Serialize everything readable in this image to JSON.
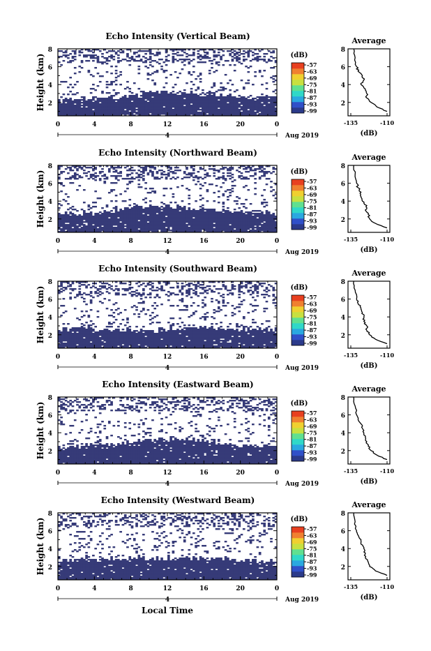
{
  "figure": {
    "xlabel_bottom": "Local Time",
    "cbar_unit": "(dB)",
    "cbar_ticks": [
      "-57",
      "-63",
      "-69",
      "-75",
      "-81",
      "-87",
      "-93",
      "-99"
    ],
    "cbar_colors": [
      "#2b3a8a",
      "#3050c8",
      "#2aa8e0",
      "#30d8c8",
      "#60e090",
      "#c8e040",
      "#f0d030",
      "#f08030",
      "#e84020"
    ],
    "fill_color": "#363b78",
    "date_label": "Aug 2019",
    "day_label": "4",
    "time_ticks": [
      "0",
      "4",
      "8",
      "12",
      "16",
      "20",
      "0"
    ],
    "height_ticks": [
      "2",
      "4",
      "6",
      "8"
    ],
    "ylabel": "Height (km)",
    "avg_title": "Average",
    "avg_xlabel": "(dB)",
    "avg_xticks": [
      "-135",
      "-110"
    ]
  },
  "chart_data": [
    {
      "type": "heatmap",
      "title": "Echo Intensity (Vertical Beam)",
      "xlabel": "",
      "ylabel": "Height (km)",
      "xlim": [
        0,
        24
      ],
      "ylim": [
        0.5,
        8
      ],
      "colorbar": {
        "label": "(dB)",
        "ticks": [
          -57,
          -63,
          -69,
          -75,
          -81,
          -87,
          -93,
          -99
        ]
      },
      "boundary_km": [
        [
          0,
          2.3
        ],
        [
          3,
          2.4
        ],
        [
          6,
          2.5
        ],
        [
          8,
          2.9
        ],
        [
          10,
          3.1
        ],
        [
          12,
          3.1
        ],
        [
          14,
          3.0
        ],
        [
          16,
          2.9
        ],
        [
          18,
          2.8
        ],
        [
          20,
          2.6
        ],
        [
          22,
          2.5
        ],
        [
          24,
          2.5
        ]
      ],
      "average": {
        "title": "Average",
        "xlabel": "(dB)",
        "xlim": [
          -135,
          -110
        ],
        "ylim": [
          0.5,
          8
        ],
        "profile": [
          [
            1.0,
            -110
          ],
          [
            1.5,
            -117
          ],
          [
            2.0,
            -121
          ],
          [
            2.5,
            -124
          ],
          [
            3.0,
            -124
          ],
          [
            3.5,
            -125
          ],
          [
            4.0,
            -128
          ],
          [
            4.5,
            -126
          ],
          [
            5.0,
            -127
          ],
          [
            5.5,
            -130
          ],
          [
            6.0,
            -131
          ],
          [
            7.0,
            -132
          ],
          [
            8.0,
            -133
          ]
        ]
      }
    },
    {
      "type": "heatmap",
      "title": "Echo Intensity (Northward Beam)",
      "xlabel": "",
      "ylabel": "Height (km)",
      "xlim": [
        0,
        24
      ],
      "ylim": [
        0.5,
        8
      ],
      "colorbar": {
        "label": "(dB)",
        "ticks": [
          -57,
          -63,
          -69,
          -75,
          -81,
          -87,
          -93,
          -99
        ]
      },
      "boundary_km": [
        [
          0,
          2.5
        ],
        [
          3,
          2.6
        ],
        [
          6,
          2.9
        ],
        [
          8,
          3.3
        ],
        [
          10,
          3.4
        ],
        [
          12,
          3.4
        ],
        [
          14,
          3.3
        ],
        [
          16,
          3.1
        ],
        [
          18,
          2.9
        ],
        [
          20,
          2.8
        ],
        [
          22,
          2.6
        ],
        [
          24,
          2.6
        ]
      ],
      "average": {
        "title": "Average",
        "xlabel": "(dB)",
        "xlim": [
          -135,
          -110
        ],
        "ylim": [
          0.5,
          8
        ],
        "profile": [
          [
            1.0,
            -110
          ],
          [
            1.5,
            -118
          ],
          [
            2.0,
            -122
          ],
          [
            2.5,
            -123
          ],
          [
            3.0,
            -125
          ],
          [
            3.5,
            -124
          ],
          [
            4.0,
            -127
          ],
          [
            4.5,
            -128
          ],
          [
            5.0,
            -128
          ],
          [
            5.5,
            -130
          ],
          [
            6.0,
            -131
          ],
          [
            7.0,
            -132
          ],
          [
            8.0,
            -133
          ]
        ]
      }
    },
    {
      "type": "heatmap",
      "title": "Echo Intensity (Southward Beam)",
      "xlabel": "",
      "ylabel": "Height (km)",
      "xlim": [
        0,
        24
      ],
      "ylim": [
        0.5,
        8
      ],
      "colorbar": {
        "label": "(dB)",
        "ticks": [
          -57,
          -63,
          -69,
          -75,
          -81,
          -87,
          -93,
          -99
        ]
      },
      "boundary_km": [
        [
          0,
          2.6
        ],
        [
          3,
          2.7
        ],
        [
          6,
          2.6
        ],
        [
          8,
          2.5
        ],
        [
          10,
          2.4
        ],
        [
          12,
          2.6
        ],
        [
          14,
          2.7
        ],
        [
          16,
          2.9
        ],
        [
          18,
          2.7
        ],
        [
          20,
          2.6
        ],
        [
          22,
          2.6
        ],
        [
          24,
          2.6
        ]
      ],
      "average": {
        "title": "Average",
        "xlabel": "(dB)",
        "xlim": [
          -135,
          -110
        ],
        "ylim": [
          0.5,
          8
        ],
        "profile": [
          [
            1.0,
            -110
          ],
          [
            1.5,
            -118
          ],
          [
            2.0,
            -122
          ],
          [
            2.5,
            -124
          ],
          [
            3.0,
            -124
          ],
          [
            3.5,
            -126
          ],
          [
            4.0,
            -126
          ],
          [
            4.5,
            -127
          ],
          [
            5.0,
            -128
          ],
          [
            5.5,
            -130
          ],
          [
            6.0,
            -131
          ],
          [
            7.0,
            -132
          ],
          [
            8.0,
            -133
          ]
        ]
      }
    },
    {
      "type": "heatmap",
      "title": "Echo Intensity (Eastward Beam)",
      "xlabel": "",
      "ylabel": "Height (km)",
      "xlim": [
        0,
        24
      ],
      "ylim": [
        0.5,
        8
      ],
      "colorbar": {
        "label": "(dB)",
        "ticks": [
          -57,
          -63,
          -69,
          -75,
          -81,
          -87,
          -93,
          -99
        ]
      },
      "boundary_km": [
        [
          0,
          2.4
        ],
        [
          3,
          2.6
        ],
        [
          6,
          2.7
        ],
        [
          8,
          3.0
        ],
        [
          10,
          3.1
        ],
        [
          12,
          3.3
        ],
        [
          14,
          3.3
        ],
        [
          16,
          3.1
        ],
        [
          18,
          2.8
        ],
        [
          20,
          2.6
        ],
        [
          22,
          2.5
        ],
        [
          24,
          2.5
        ]
      ],
      "average": {
        "title": "Average",
        "xlabel": "(dB)",
        "xlim": [
          -135,
          -110
        ],
        "ylim": [
          0.5,
          8
        ],
        "profile": [
          [
            1.0,
            -110
          ],
          [
            1.5,
            -117
          ],
          [
            2.0,
            -121
          ],
          [
            2.5,
            -123
          ],
          [
            3.0,
            -124
          ],
          [
            3.5,
            -125
          ],
          [
            4.0,
            -126
          ],
          [
            4.5,
            -127
          ],
          [
            5.0,
            -128
          ],
          [
            5.5,
            -130
          ],
          [
            6.0,
            -131
          ],
          [
            7.0,
            -132
          ],
          [
            8.0,
            -133
          ]
        ]
      }
    },
    {
      "type": "heatmap",
      "title": "Echo Intensity (Westward Beam)",
      "xlabel": "Local Time",
      "ylabel": "Height (km)",
      "xlim": [
        0,
        24
      ],
      "ylim": [
        0.5,
        8
      ],
      "colorbar": {
        "label": "(dB)",
        "ticks": [
          -57,
          -63,
          -69,
          -75,
          -81,
          -87,
          -93,
          -99
        ]
      },
      "boundary_km": [
        [
          0,
          2.7
        ],
        [
          3,
          2.7
        ],
        [
          6,
          2.8
        ],
        [
          8,
          2.9
        ],
        [
          10,
          2.9
        ],
        [
          12,
          2.9
        ],
        [
          14,
          2.9
        ],
        [
          16,
          2.9
        ],
        [
          18,
          2.8
        ],
        [
          20,
          2.7
        ],
        [
          22,
          2.6
        ],
        [
          24,
          2.6
        ]
      ],
      "average": {
        "title": "Average",
        "xlabel": "(dB)",
        "xlim": [
          -135,
          -110
        ],
        "ylim": [
          0.5,
          8
        ],
        "profile": [
          [
            1.0,
            -110
          ],
          [
            1.5,
            -118
          ],
          [
            2.0,
            -122
          ],
          [
            2.5,
            -123
          ],
          [
            3.0,
            -125
          ],
          [
            3.5,
            -125
          ],
          [
            4.0,
            -126
          ],
          [
            4.5,
            -128
          ],
          [
            5.0,
            -128
          ],
          [
            5.5,
            -130
          ],
          [
            6.0,
            -131
          ],
          [
            7.0,
            -132
          ],
          [
            8.0,
            -133
          ]
        ]
      }
    }
  ]
}
